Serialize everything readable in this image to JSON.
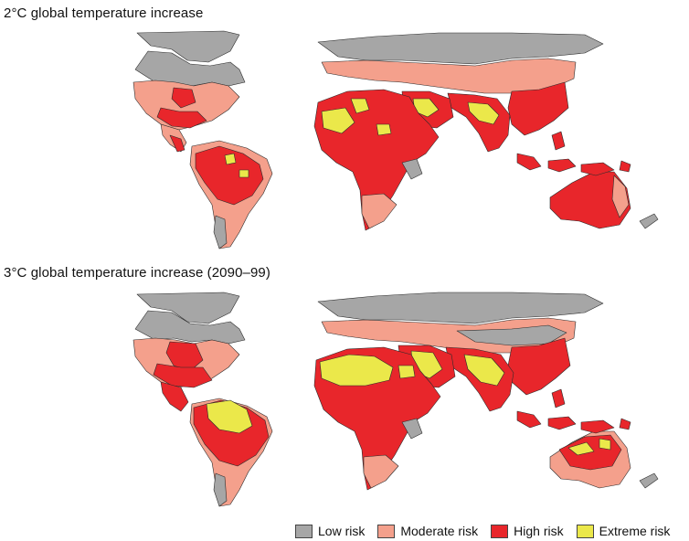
{
  "panels": [
    {
      "title": "2°C global temperature increase"
    },
    {
      "title": "3°C global temperature increase (2090–99)"
    }
  ],
  "legend": [
    {
      "label": "Low risk",
      "color": "#a6a6a6"
    },
    {
      "label": "Moderate risk",
      "color": "#f4a08c"
    },
    {
      "label": "High risk",
      "color": "#e8262b"
    },
    {
      "label": "Extreme risk",
      "color": "#ebe84a"
    }
  ],
  "colors": {
    "low": "#a6a6a6",
    "moderate": "#f4a08c",
    "high": "#e8262b",
    "extreme": "#ebe84a",
    "border": "#2b2b2b"
  }
}
